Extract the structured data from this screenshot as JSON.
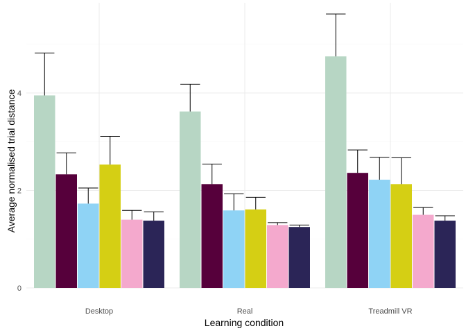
{
  "chart_data": {
    "type": "bar",
    "xlabel": "Learning condition",
    "ylabel": "Average normalised trial distance",
    "categories": [
      "Desktop",
      "Real",
      "Treadmill VR"
    ],
    "y_ticks": [
      0,
      2,
      4
    ],
    "ylim": [
      0,
      5.85
    ],
    "grid": true,
    "legend": "none",
    "series": [
      {
        "color": "#b7d6c4",
        "values": [
          3.95,
          3.62,
          4.75
        ],
        "error_upper": [
          4.82,
          4.18,
          5.62
        ]
      },
      {
        "color": "#56003b",
        "values": [
          2.33,
          2.13,
          2.36
        ],
        "error_upper": [
          2.77,
          2.54,
          2.83
        ]
      },
      {
        "color": "#8fd3f5",
        "values": [
          1.73,
          1.59,
          2.22
        ],
        "error_upper": [
          2.05,
          1.93,
          2.68
        ]
      },
      {
        "color": "#d5cf14",
        "values": [
          2.53,
          1.61,
          2.13
        ],
        "error_upper": [
          3.11,
          1.86,
          2.67
        ]
      },
      {
        "color": "#f4a9cd",
        "values": [
          1.4,
          1.29,
          1.5
        ],
        "error_upper": [
          1.59,
          1.34,
          1.65
        ]
      },
      {
        "color": "#2b2557",
        "values": [
          1.38,
          1.25,
          1.38
        ],
        "error_upper": [
          1.56,
          1.29,
          1.48
        ]
      }
    ]
  }
}
